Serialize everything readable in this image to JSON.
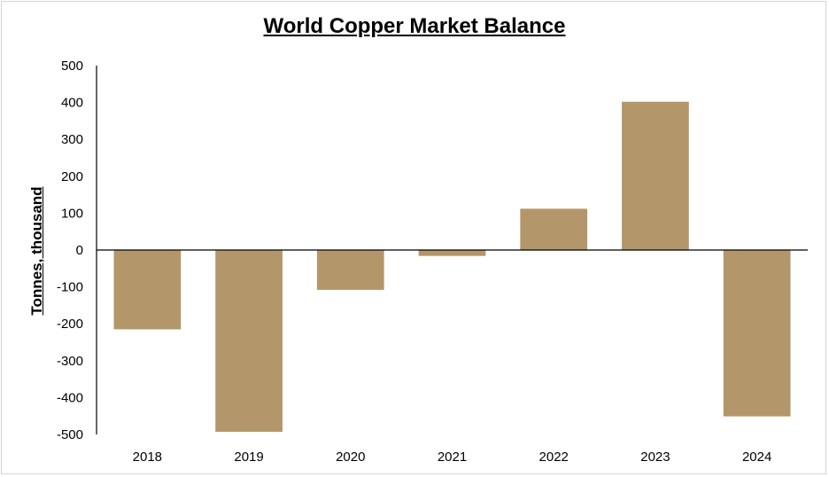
{
  "chart_data": {
    "type": "bar",
    "title": "World Copper Market Balance",
    "xlabel": "",
    "ylabel": "Tonnes, thousand",
    "categories": [
      "2018",
      "2019",
      "2020",
      "2021",
      "2022",
      "2023",
      "2024"
    ],
    "values": [
      -215,
      -493,
      -108,
      -16,
      112,
      402,
      -451
    ],
    "ylim": [
      -500,
      500
    ],
    "yticks": [
      500,
      400,
      300,
      200,
      100,
      0,
      -100,
      -200,
      -300,
      -400,
      -500
    ],
    "grid": false,
    "legend": "none",
    "bar_color": "#b3976b"
  }
}
